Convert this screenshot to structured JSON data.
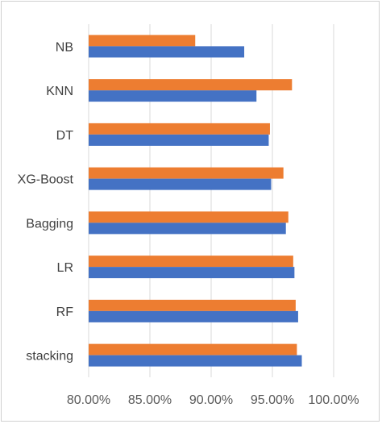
{
  "chart_data": {
    "type": "bar",
    "orientation": "horizontal",
    "categories": [
      "NB",
      "KNN",
      "DT",
      "XG-Boost",
      "Bagging",
      "LR",
      "RF",
      "stacking"
    ],
    "series": [
      {
        "color": "#4472C4",
        "values": [
          92.7,
          93.7,
          94.7,
          94.9,
          96.1,
          96.8,
          97.1,
          97.4
        ]
      },
      {
        "color": "#ED7D31",
        "values": [
          88.7,
          96.6,
          94.8,
          95.9,
          96.3,
          96.7,
          96.9,
          97.0
        ]
      }
    ],
    "xlim": [
      80,
      100
    ],
    "xticks": [
      80,
      85,
      90,
      95,
      100
    ],
    "xtick_labels": [
      "80.00%",
      "85.00%",
      "90.00%",
      "95.00%",
      "100.00%"
    ],
    "grid": true,
    "legend": "none",
    "title": "",
    "xlabel": "",
    "ylabel": ""
  }
}
